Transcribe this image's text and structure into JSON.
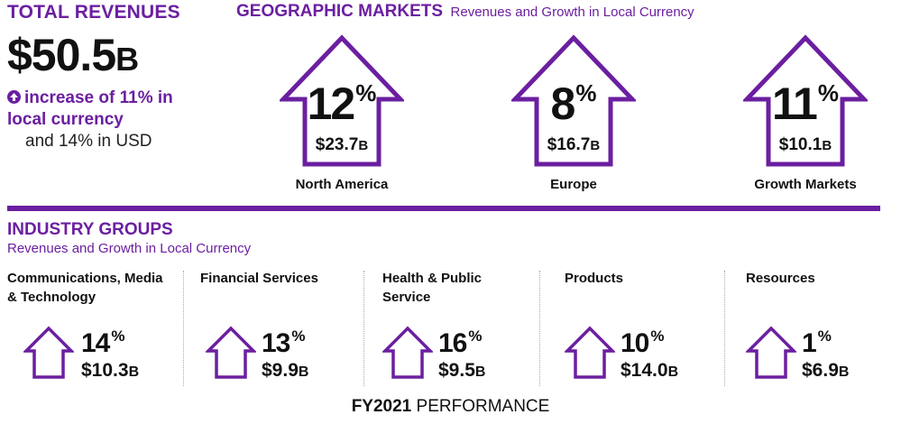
{
  "total": {
    "title": "TOTAL REVENUES",
    "amount": "$50.5",
    "amount_unit": "B",
    "increase_text": "increase of 11% in local currency",
    "usd_text": "and 14% in USD"
  },
  "geo": {
    "title": "GEOGRAPHIC MARKETS",
    "subtitle": "Revenues and Growth in Local Currency",
    "markets": [
      {
        "pct": "12",
        "pct_sign": "%",
        "value": "$23.7",
        "unit": "B",
        "label": "North America"
      },
      {
        "pct": "8",
        "pct_sign": "%",
        "value": "$16.7",
        "unit": "B",
        "label": "Europe"
      },
      {
        "pct": "11",
        "pct_sign": "%",
        "value": "$10.1",
        "unit": "B",
        "label": "Growth Markets"
      }
    ]
  },
  "industry": {
    "title": "INDUSTRY GROUPS",
    "subtitle": "Revenues and Growth in Local Currency",
    "groups": [
      {
        "name": "Communications, Media & Technology",
        "pct": "14",
        "pct_sign": "%",
        "value": "$10.3",
        "unit": "B"
      },
      {
        "name": "Financial Services",
        "pct": "13",
        "pct_sign": "%",
        "value": "$9.9",
        "unit": "B"
      },
      {
        "name": "Health & Public Service",
        "pct": "16",
        "pct_sign": "%",
        "value": "$9.5",
        "unit": "B"
      },
      {
        "name": "Products",
        "pct": "10",
        "pct_sign": "%",
        "value": "$14.0",
        "unit": "B"
      },
      {
        "name": "Resources",
        "pct": "1",
        "pct_sign": "%",
        "value": "$6.9",
        "unit": "B"
      }
    ]
  },
  "footer": {
    "fy": "FY2021",
    "text": "PERFORMANCE"
  },
  "colors": {
    "accent": "#6b1fa0",
    "text": "#111111"
  },
  "icons": {
    "arrow": "up-arrow-house-icon",
    "bullet": "up-circle-icon"
  }
}
